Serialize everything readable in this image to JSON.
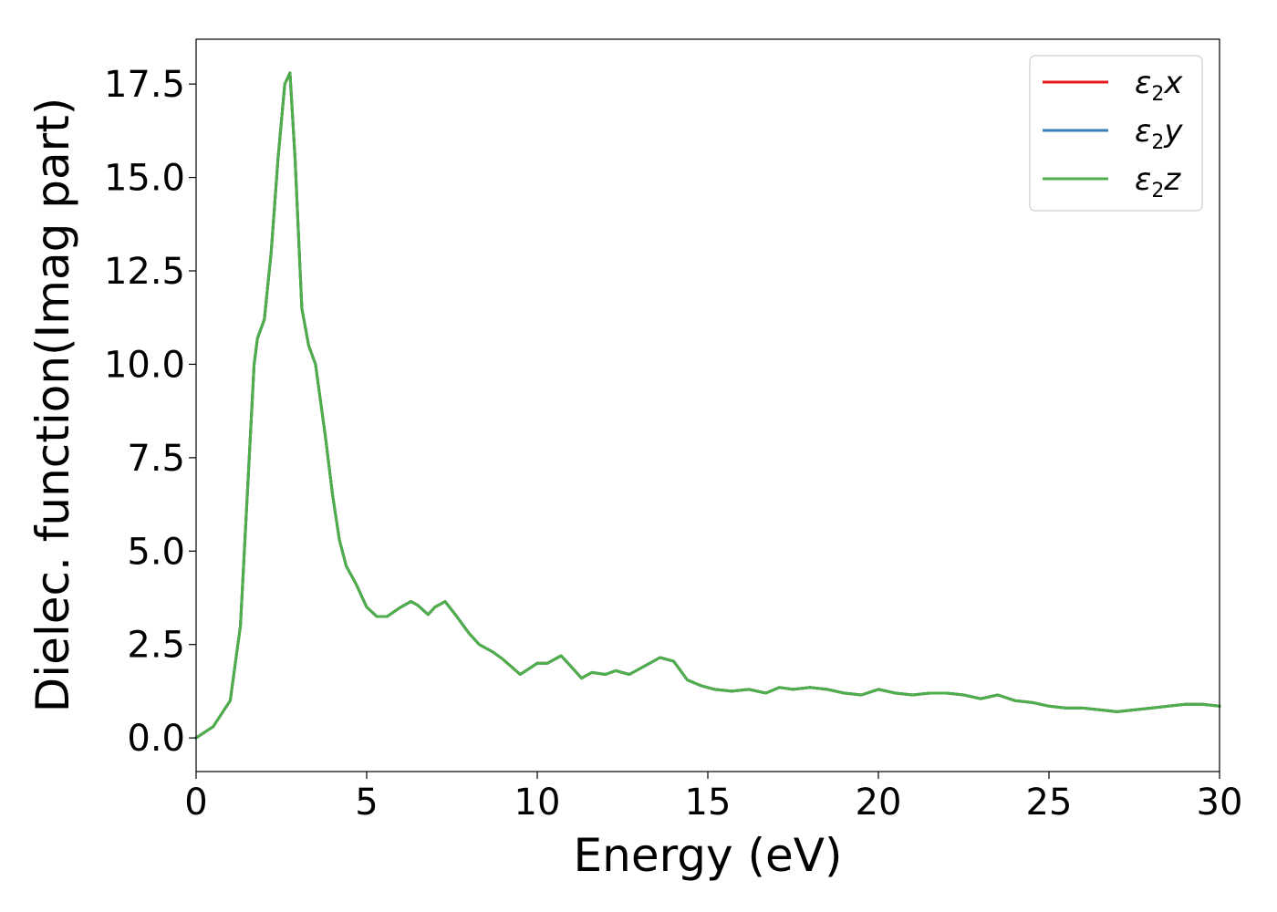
{
  "chart_data": {
    "type": "line",
    "xlabel": "Energy (eV)",
    "ylabel": "Dielec. function(Imag part)",
    "xlim": [
      0,
      30
    ],
    "ylim": [
      -0.9,
      18.7
    ],
    "xticks": [
      0,
      5,
      10,
      15,
      20,
      25,
      30
    ],
    "xtick_labels": [
      "0",
      "5",
      "10",
      "15",
      "20",
      "25",
      "30"
    ],
    "yticks": [
      0.0,
      2.5,
      5.0,
      7.5,
      10.0,
      12.5,
      15.0,
      17.5
    ],
    "ytick_labels": [
      "0.0",
      "2.5",
      "5.0",
      "7.5",
      "10.0",
      "12.5",
      "15.0",
      "17.5"
    ],
    "grid": false,
    "legend_position": "top-right",
    "x": [
      0,
      0.5,
      1.0,
      1.3,
      1.5,
      1.7,
      1.8,
      2.0,
      2.2,
      2.4,
      2.6,
      2.75,
      2.9,
      3.1,
      3.3,
      3.5,
      3.8,
      4.0,
      4.2,
      4.4,
      4.7,
      5.0,
      5.3,
      5.6,
      6.0,
      6.3,
      6.5,
      6.8,
      7.0,
      7.3,
      7.6,
      8.0,
      8.3,
      8.7,
      9.0,
      9.5,
      10.0,
      10.3,
      10.7,
      11.0,
      11.3,
      11.6,
      12.0,
      12.3,
      12.7,
      13.0,
      13.3,
      13.6,
      14.0,
      14.4,
      14.8,
      15.2,
      15.7,
      16.2,
      16.7,
      17.1,
      17.5,
      18.0,
      18.5,
      19.0,
      19.5,
      20.0,
      20.5,
      21.0,
      21.5,
      22.0,
      22.5,
      23.0,
      23.5,
      24.0,
      24.5,
      25.0,
      25.5,
      26.0,
      26.5,
      27.0,
      27.5,
      28.0,
      28.5,
      29.0,
      29.5,
      30.0
    ],
    "series": [
      {
        "name": "ε2x",
        "color": "#e41a1c",
        "values": [
          0.0,
          0.3,
          1.0,
          3.0,
          6.5,
          10.0,
          10.7,
          11.2,
          13.0,
          15.5,
          17.5,
          17.8,
          15.5,
          11.5,
          10.5,
          10.0,
          8.0,
          6.5,
          5.3,
          4.6,
          4.1,
          3.5,
          3.25,
          3.25,
          3.5,
          3.65,
          3.55,
          3.3,
          3.5,
          3.65,
          3.3,
          2.8,
          2.5,
          2.3,
          2.1,
          1.7,
          2.0,
          2.0,
          2.2,
          1.9,
          1.6,
          1.75,
          1.7,
          1.8,
          1.7,
          1.85,
          2.0,
          2.15,
          2.05,
          1.55,
          1.4,
          1.3,
          1.25,
          1.3,
          1.2,
          1.35,
          1.3,
          1.35,
          1.3,
          1.2,
          1.15,
          1.3,
          1.2,
          1.15,
          1.2,
          1.2,
          1.15,
          1.05,
          1.15,
          1.0,
          0.95,
          0.85,
          0.8,
          0.8,
          0.75,
          0.7,
          0.75,
          0.8,
          0.85,
          0.9,
          0.9,
          0.85
        ]
      },
      {
        "name": "ε2y",
        "color": "#377eb8",
        "values": [
          0.0,
          0.3,
          1.0,
          3.0,
          6.5,
          10.0,
          10.7,
          11.2,
          13.0,
          15.5,
          17.5,
          17.8,
          15.5,
          11.5,
          10.5,
          10.0,
          8.0,
          6.5,
          5.3,
          4.6,
          4.1,
          3.5,
          3.25,
          3.25,
          3.5,
          3.65,
          3.55,
          3.3,
          3.5,
          3.65,
          3.3,
          2.8,
          2.5,
          2.3,
          2.1,
          1.7,
          2.0,
          2.0,
          2.2,
          1.9,
          1.6,
          1.75,
          1.7,
          1.8,
          1.7,
          1.85,
          2.0,
          2.15,
          2.05,
          1.55,
          1.4,
          1.3,
          1.25,
          1.3,
          1.2,
          1.35,
          1.3,
          1.35,
          1.3,
          1.2,
          1.15,
          1.3,
          1.2,
          1.15,
          1.2,
          1.2,
          1.15,
          1.05,
          1.15,
          1.0,
          0.95,
          0.85,
          0.8,
          0.8,
          0.75,
          0.7,
          0.75,
          0.8,
          0.85,
          0.9,
          0.9,
          0.85
        ]
      },
      {
        "name": "ε2z",
        "color": "#4daf4a",
        "values": [
          0.0,
          0.3,
          1.0,
          3.0,
          6.5,
          10.0,
          10.7,
          11.2,
          13.0,
          15.5,
          17.5,
          17.8,
          15.5,
          11.5,
          10.5,
          10.0,
          8.0,
          6.5,
          5.3,
          4.6,
          4.1,
          3.5,
          3.25,
          3.25,
          3.5,
          3.65,
          3.55,
          3.3,
          3.5,
          3.65,
          3.3,
          2.8,
          2.5,
          2.3,
          2.1,
          1.7,
          2.0,
          2.0,
          2.2,
          1.9,
          1.6,
          1.75,
          1.7,
          1.8,
          1.7,
          1.85,
          2.0,
          2.15,
          2.05,
          1.55,
          1.4,
          1.3,
          1.25,
          1.3,
          1.2,
          1.35,
          1.3,
          1.35,
          1.3,
          1.2,
          1.15,
          1.3,
          1.2,
          1.15,
          1.2,
          1.2,
          1.15,
          1.05,
          1.15,
          1.0,
          0.95,
          0.85,
          0.8,
          0.8,
          0.75,
          0.7,
          0.75,
          0.8,
          0.85,
          0.9,
          0.9,
          0.85
        ]
      }
    ],
    "legend": [
      {
        "base": "ε",
        "sub": "2",
        "var": "x"
      },
      {
        "base": "ε",
        "sub": "2",
        "var": "y"
      },
      {
        "base": "ε",
        "sub": "2",
        "var": "z"
      }
    ]
  }
}
